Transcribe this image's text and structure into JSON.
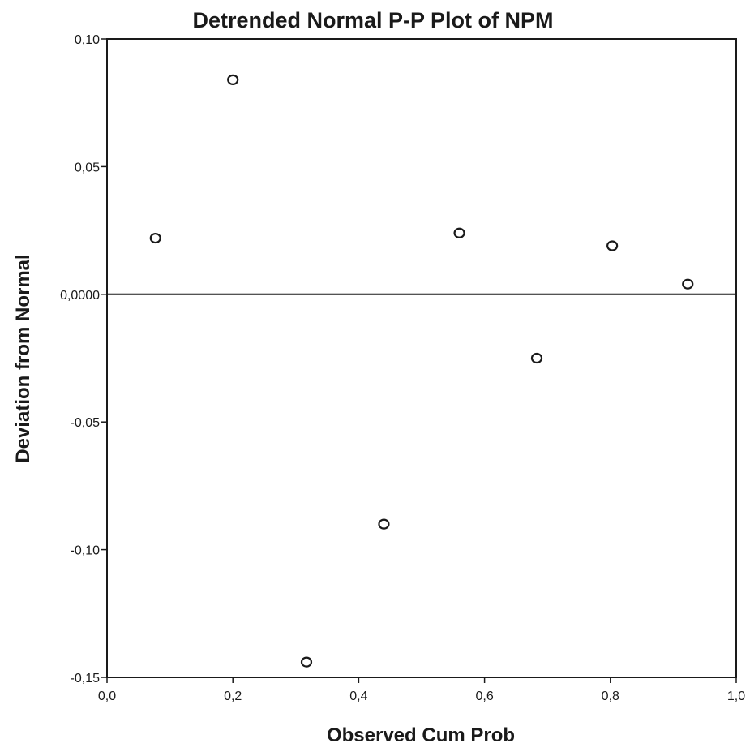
{
  "chart_data": {
    "type": "scatter",
    "title": "Detrended Normal P-P Plot of NPM",
    "xlabel": "Observed Cum Prob",
    "ylabel": "Deviation from Normal",
    "xlim": [
      0.0,
      1.0
    ],
    "ylim": [
      -0.15,
      0.1
    ],
    "x_ticks": [
      0.0,
      0.2,
      0.4,
      0.6,
      0.8,
      1.0
    ],
    "x_tick_labels": [
      "0,0",
      "0,2",
      "0,4",
      "0,6",
      "0,8",
      "1,0"
    ],
    "y_ticks": [
      0.1,
      0.05,
      0.0,
      -0.05,
      -0.1,
      -0.15
    ],
    "y_tick_labels": [
      "0,10",
      "0,05",
      "0,0000",
      "-0,05",
      "-0,10",
      "-0,15"
    ],
    "reference_line_y": 0.0,
    "grid": false,
    "points": [
      {
        "x": 0.077,
        "y": 0.022
      },
      {
        "x": 0.2,
        "y": 0.084
      },
      {
        "x": 0.317,
        "y": -0.144
      },
      {
        "x": 0.44,
        "y": -0.09
      },
      {
        "x": 0.56,
        "y": 0.024
      },
      {
        "x": 0.683,
        "y": -0.025
      },
      {
        "x": 0.803,
        "y": 0.019
      },
      {
        "x": 0.923,
        "y": 0.004
      }
    ],
    "marker": "open-circle",
    "colors": {
      "ink": "#1a1a1a",
      "background": "#ffffff"
    }
  }
}
